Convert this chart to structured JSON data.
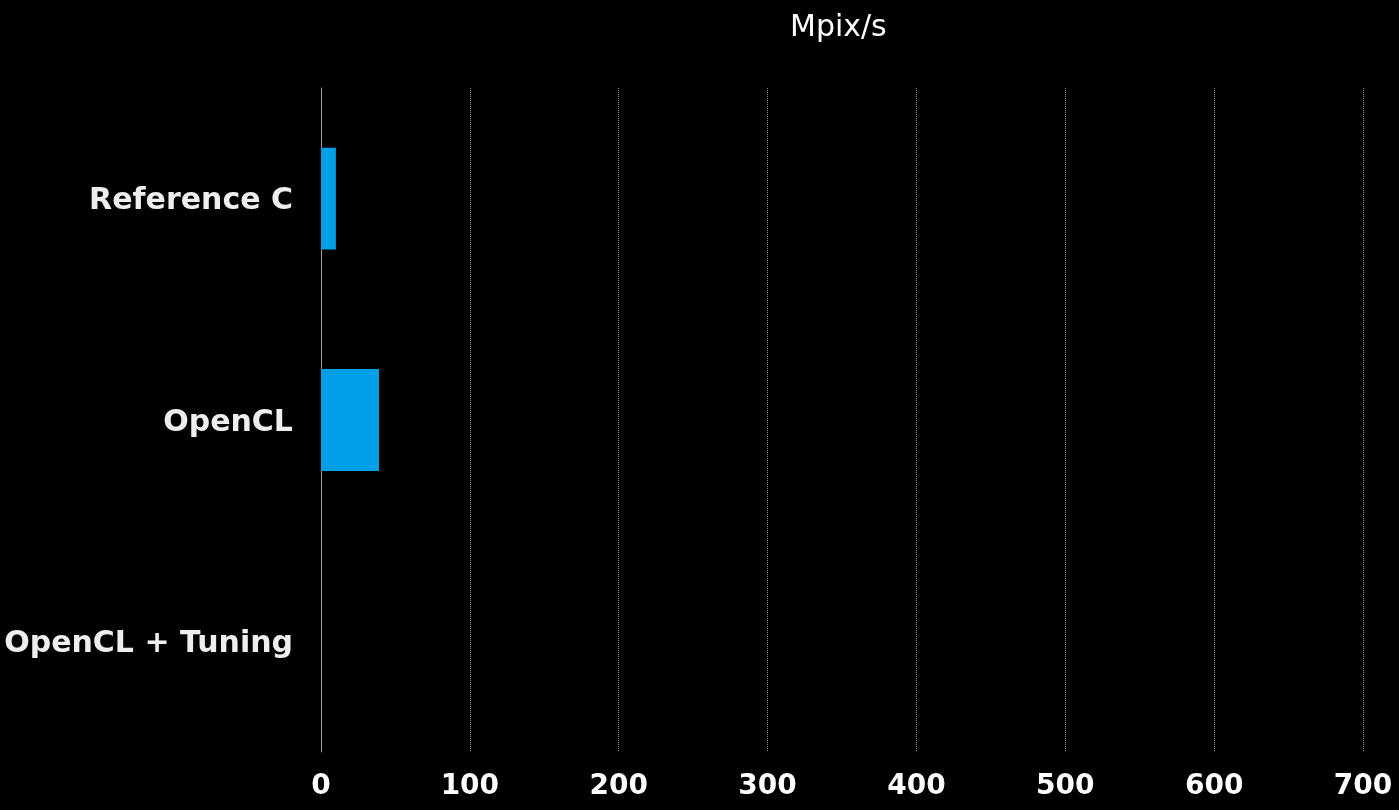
{
  "chart_data": {
    "type": "bar",
    "orientation": "horizontal",
    "xlabel": "Mpix/s",
    "categories": [
      "Reference C",
      "OpenCL",
      "OpenCL + Tuning"
    ],
    "values": [
      10,
      39,
      null
    ],
    "color": "#00a0e8",
    "xlim": [
      0,
      700
    ],
    "xticks": [
      0,
      100,
      200,
      300,
      400,
      500,
      600,
      700
    ],
    "grid": "x"
  }
}
